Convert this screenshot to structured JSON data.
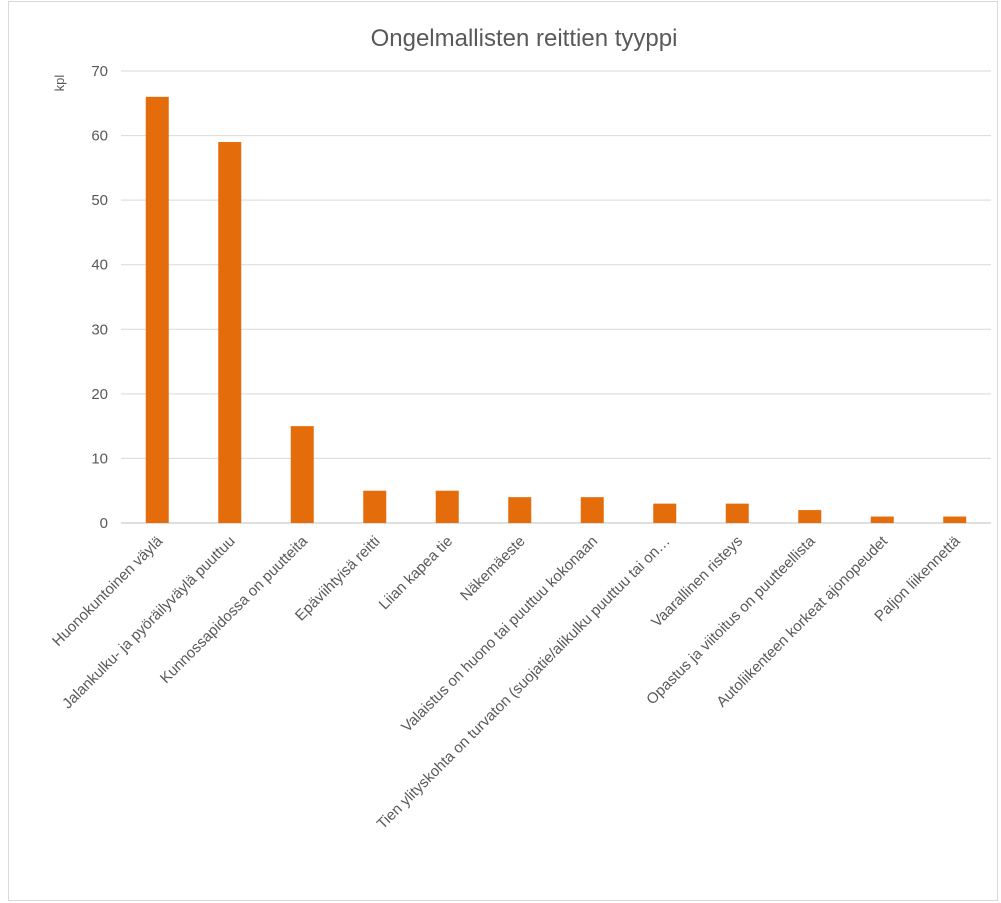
{
  "chart_data": {
    "type": "bar",
    "title": "Ongelmallisten reittien tyyppi",
    "ylabel": "kpl",
    "xlabel": "",
    "ylim": [
      0,
      70
    ],
    "yticks": [
      0,
      10,
      20,
      30,
      40,
      50,
      60,
      70
    ],
    "grid": true,
    "legend": "none",
    "color": "#E46C0A",
    "categories": [
      "Huonokuntoinen väylä",
      "Jalankulku- ja pyöräilyväylä puuttuu",
      "Kunnossapidossa on puutteita",
      "Epäviihtyisä reitti",
      "Liian kapea tie",
      "Näkemäeste",
      "Valaistus on huono tai puuttuu kokonaan",
      "Tien ylityskohta on turvaton (suojatie/alikulku puuttuu tai on…",
      "Vaarallinen risteys",
      "Opastus ja viitoitus on puutteellista",
      "Autoliikenteen korkeat ajonopeudet",
      "Paljon liikennettä"
    ],
    "values": [
      66,
      59,
      15,
      5,
      5,
      4,
      4,
      3,
      3,
      2,
      1,
      1
    ]
  }
}
